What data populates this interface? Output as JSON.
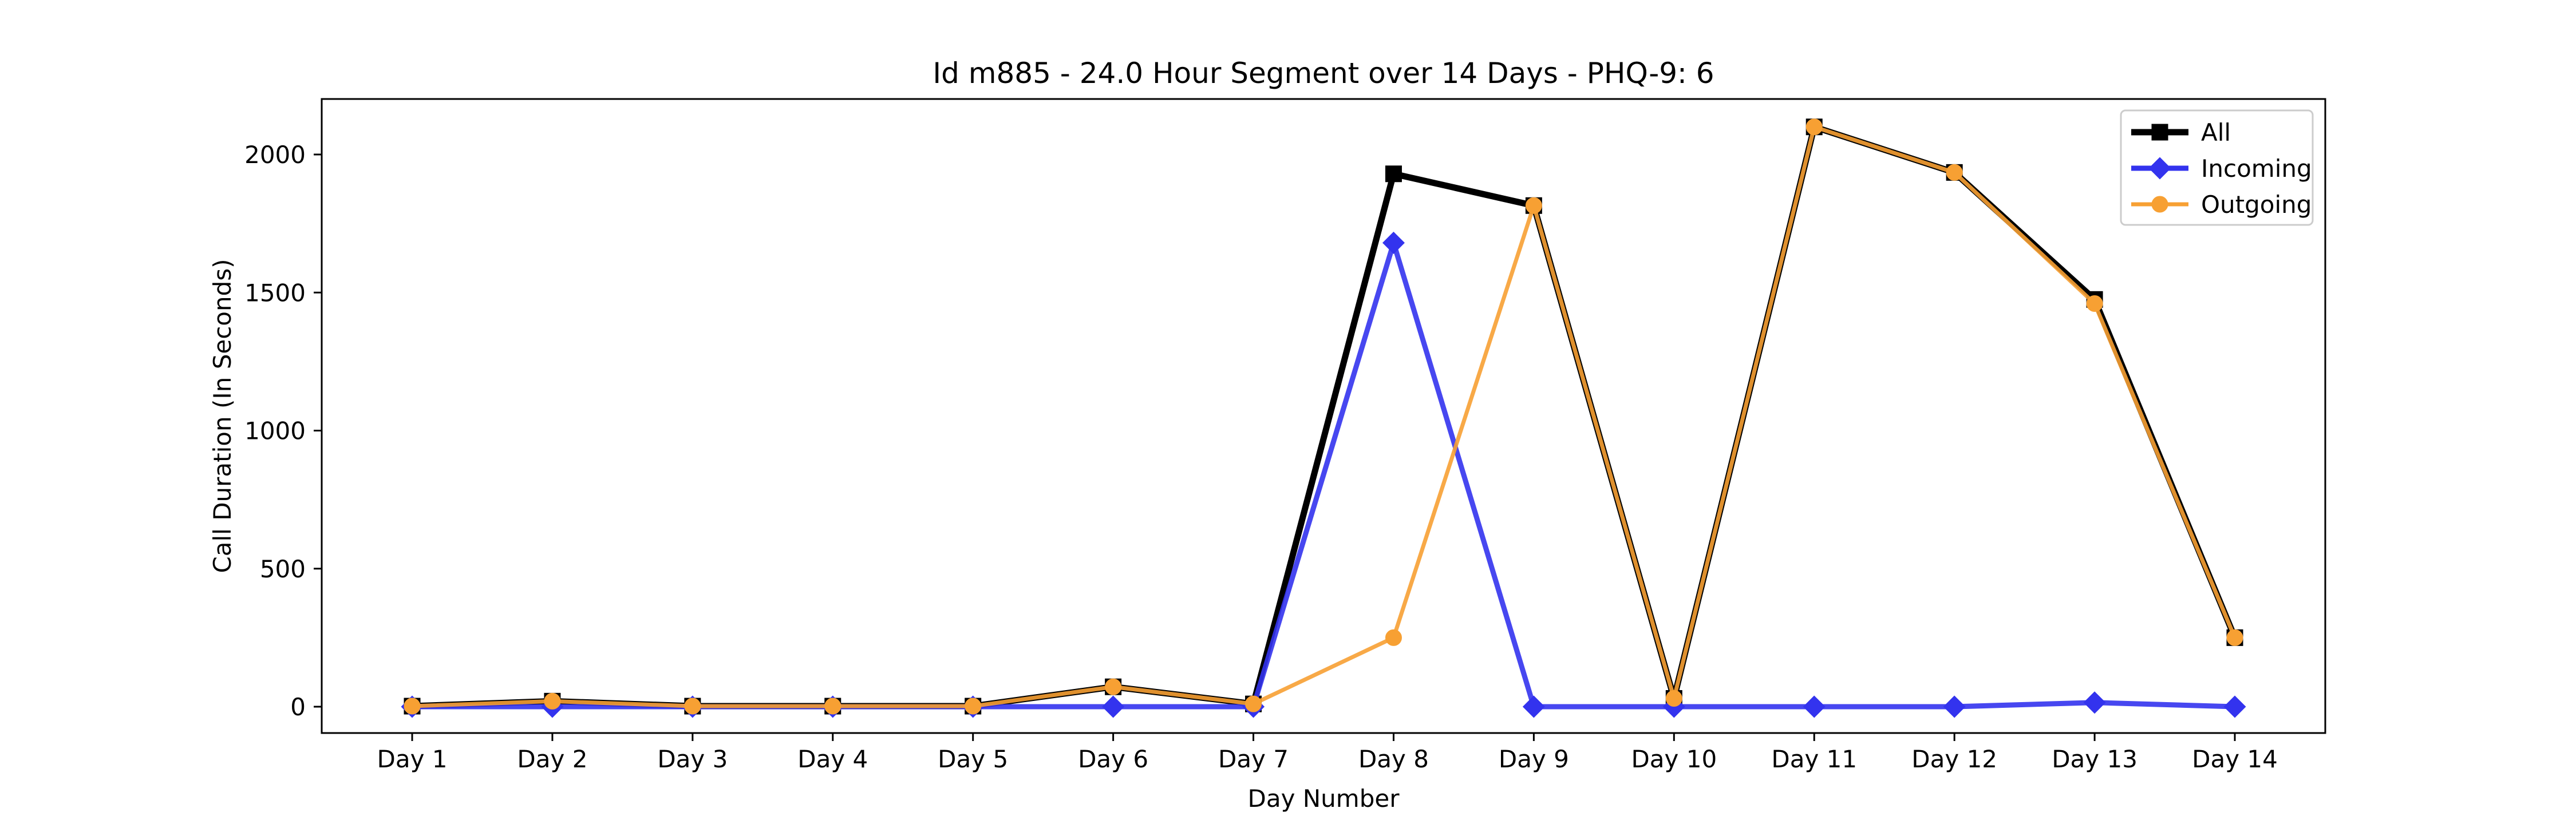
{
  "chart_data": {
    "type": "line",
    "title": "Id m885 - 24.0 Hour Segment over 14 Days - PHQ-9: 6",
    "xlabel": "Day Number",
    "ylabel": "Call Duration (In Seconds)",
    "categories": [
      "Day 1",
      "Day 2",
      "Day 3",
      "Day 4",
      "Day 5",
      "Day 6",
      "Day 7",
      "Day 8",
      "Day 9",
      "Day 10",
      "Day 11",
      "Day 12",
      "Day 13",
      "Day 14"
    ],
    "yticks": [
      0,
      500,
      1000,
      1500,
      2000
    ],
    "ylim": [
      -100,
      2200
    ],
    "grid": false,
    "legend_position": "top-right",
    "series": [
      {
        "name": "All",
        "color": "#000000",
        "marker": "square",
        "values": [
          2,
          20,
          2,
          2,
          2,
          72,
          10,
          1930,
          1815,
          30,
          2100,
          1935,
          1475,
          250
        ]
      },
      {
        "name": "Incoming",
        "color": "#3333ee",
        "marker": "diamond",
        "values": [
          0,
          0,
          0,
          0,
          0,
          0,
          0,
          1680,
          0,
          0,
          0,
          0,
          15,
          0
        ]
      },
      {
        "name": "Outgoing",
        "color": "#f7a033",
        "marker": "circle",
        "values": [
          2,
          20,
          2,
          2,
          2,
          72,
          10,
          250,
          1815,
          30,
          2100,
          1935,
          1460,
          250
        ]
      }
    ]
  }
}
